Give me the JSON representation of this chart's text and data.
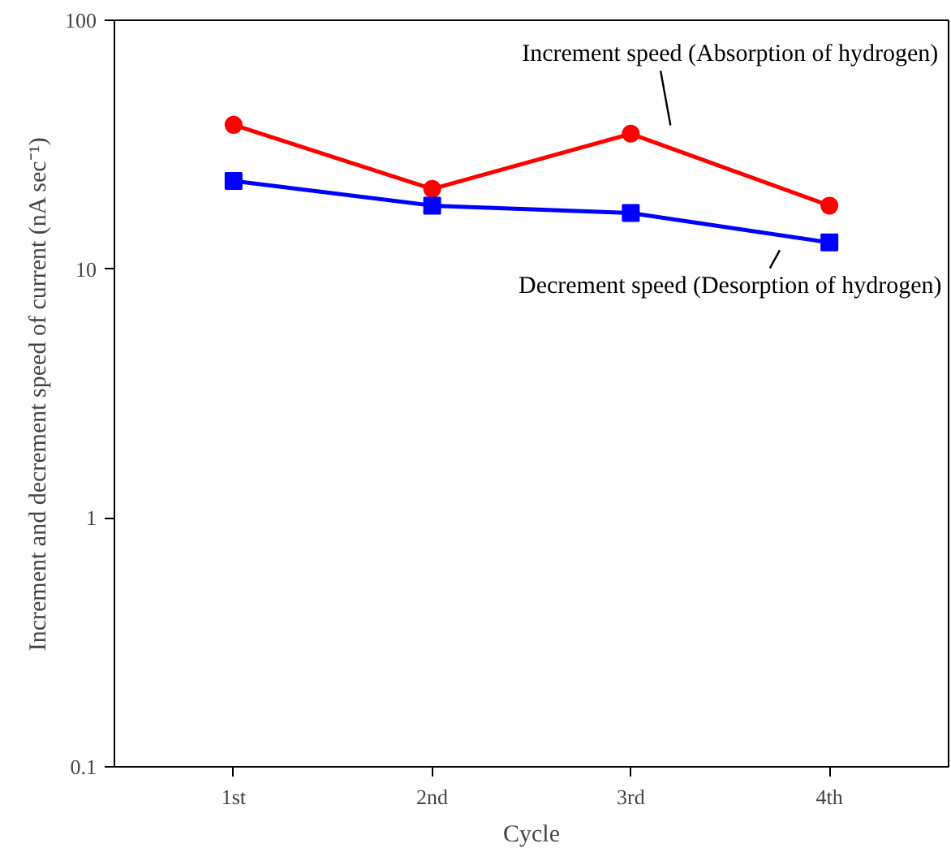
{
  "chart_data": {
    "type": "line",
    "xlabel": "Cycle",
    "ylabel": "Increment and decrement speed of current (nA sec⁻¹)",
    "categories": [
      "1st",
      "2nd",
      "3rd",
      "4th"
    ],
    "log": "y",
    "ylim": [
      0.1,
      100
    ],
    "yticks": [
      0.1,
      1,
      10,
      100
    ],
    "grid": false,
    "series": [
      {
        "name": "Increment speed (Absorption of hydrogen)",
        "color": "#ff0000",
        "marker": "circle",
        "values": [
          38,
          21,
          35,
          18
        ]
      },
      {
        "name": "Decrement speed (Desorption of hydrogen)",
        "color": "#0000ff",
        "marker": "square",
        "values": [
          22.6,
          18,
          16.8,
          12.8
        ]
      }
    ]
  }
}
